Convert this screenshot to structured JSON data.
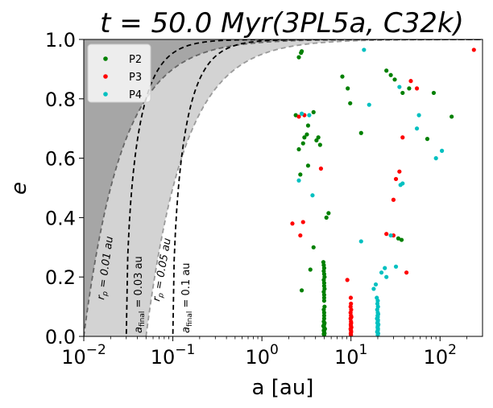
{
  "chart_data": {
    "type": "scatter",
    "title": "t = 50.0 Myr(3PL5a, C32k)",
    "xlabel": "a [au]",
    "ylabel": "e",
    "x_scale": "log",
    "xlim": [
      0.01,
      300
    ],
    "ylim": [
      0.0,
      1.0
    ],
    "x_ticks": [
      {
        "value": 0.01,
        "base": "10",
        "exp": "−2"
      },
      {
        "value": 0.1,
        "base": "10",
        "exp": "−1"
      },
      {
        "value": 1,
        "base": "10",
        "exp": "0"
      },
      {
        "value": 10,
        "base": "10",
        "exp": "1"
      },
      {
        "value": 100,
        "base": "10",
        "exp": "2"
      }
    ],
    "y_ticks": [
      "0.0",
      "0.2",
      "0.4",
      "0.6",
      "0.8",
      "1.0"
    ],
    "legend_position": "top-left",
    "shading": {
      "dark_region_boundary_rp": 0.01,
      "light_region_boundary_rp": 0.05,
      "dark_color": "#a6a6a6",
      "light_color": "#d3d3d3"
    },
    "curves": [
      {
        "kind": "rp",
        "rp": 0.01,
        "label": "r_p = 0.01 au",
        "color": "#666666"
      },
      {
        "kind": "rp",
        "rp": 0.05,
        "label": "r_p = 0.05 au",
        "color": "#9a9a9a"
      },
      {
        "kind": "afinal",
        "af": 0.03,
        "label": "a_final = 0.03 au",
        "color": "#000000"
      },
      {
        "kind": "afinal",
        "af": 0.1,
        "label": "a_final = 0.1 au",
        "color": "#000000"
      }
    ],
    "annotations": {
      "rp1_main": "r",
      "rp1_sub": "p",
      "rp1_rest": " = 0.01 au",
      "rp2_main": "r",
      "rp2_sub": "p",
      "rp2_rest": " = 0.05 au",
      "af1_main": "a",
      "af1_sub": "final",
      "af1_rest": " = 0.03 au",
      "af2_main": "a",
      "af2_sub": "final",
      "af2_rest": " = 0.1 au"
    },
    "series": [
      {
        "name": "P2",
        "color": "#008000",
        "points": [
          [
            2.6,
            0.94
          ],
          [
            2.75,
            0.955
          ],
          [
            2.8,
            0.96
          ],
          [
            2.4,
            0.745
          ],
          [
            3.3,
            0.71
          ],
          [
            3.8,
            0.755
          ],
          [
            2.6,
            0.63
          ],
          [
            2.9,
            0.65
          ],
          [
            3.0,
            0.67
          ],
          [
            3.2,
            0.68
          ],
          [
            4.3,
            0.67
          ],
          [
            4.1,
            0.66
          ],
          [
            4.5,
            0.645
          ],
          [
            2.7,
            0.545
          ],
          [
            3.3,
            0.575
          ],
          [
            5.3,
            0.4
          ],
          [
            5.6,
            0.415
          ],
          [
            3.8,
            0.3
          ],
          [
            3.5,
            0.225
          ],
          [
            2.8,
            0.155
          ],
          [
            4.9,
            0.25
          ],
          [
            4.95,
            0.24
          ],
          [
            5.0,
            0.23
          ],
          [
            4.95,
            0.22
          ],
          [
            5.0,
            0.21
          ],
          [
            5.05,
            0.2
          ],
          [
            4.95,
            0.19
          ],
          [
            5.0,
            0.18
          ],
          [
            5.0,
            0.17
          ],
          [
            5.05,
            0.16
          ],
          [
            4.95,
            0.15
          ],
          [
            5.0,
            0.14
          ],
          [
            5.0,
            0.13
          ],
          [
            5.0,
            0.12
          ],
          [
            5.05,
            0.1
          ],
          [
            4.95,
            0.09
          ],
          [
            5.0,
            0.08
          ],
          [
            5.0,
            0.07
          ],
          [
            5.0,
            0.06
          ],
          [
            4.95,
            0.05
          ],
          [
            5.05,
            0.045
          ],
          [
            5.0,
            0.04
          ],
          [
            4.9,
            0.035
          ],
          [
            5.0,
            0.03
          ],
          [
            5.1,
            0.025
          ],
          [
            4.95,
            0.02
          ],
          [
            5.0,
            0.015
          ],
          [
            5.05,
            0.01
          ],
          [
            4.95,
            0.008
          ],
          [
            5.0,
            0.005
          ],
          [
            8.0,
            0.875
          ],
          [
            9.2,
            0.835
          ],
          [
            9.8,
            0.785
          ],
          [
            13.0,
            0.685
          ],
          [
            25.0,
            0.895
          ],
          [
            28.0,
            0.88
          ],
          [
            31.0,
            0.865
          ],
          [
            38.0,
            0.82
          ],
          [
            45.0,
            0.835
          ],
          [
            34.0,
            0.33
          ],
          [
            37.0,
            0.325
          ],
          [
            85.0,
            0.82
          ],
          [
            72.0,
            0.665
          ],
          [
            135.0,
            0.74
          ]
        ]
      },
      {
        "name": "P3",
        "color": "#ff0000",
        "points": [
          [
            2.6,
            0.74
          ],
          [
            3.0,
            0.745
          ],
          [
            4.6,
            0.565
          ],
          [
            2.2,
            0.38
          ],
          [
            2.9,
            0.385
          ],
          [
            2.7,
            0.34
          ],
          [
            9.1,
            0.19
          ],
          [
            9.95,
            0.13
          ],
          [
            10.0,
            0.11
          ],
          [
            9.9,
            0.1
          ],
          [
            10.05,
            0.09
          ],
          [
            9.9,
            0.08
          ],
          [
            10.0,
            0.07
          ],
          [
            10.1,
            0.065
          ],
          [
            9.9,
            0.06
          ],
          [
            10.0,
            0.05
          ],
          [
            10.05,
            0.045
          ],
          [
            9.95,
            0.04
          ],
          [
            10.0,
            0.035
          ],
          [
            10.1,
            0.03
          ],
          [
            9.9,
            0.025
          ],
          [
            10.0,
            0.02
          ],
          [
            10.05,
            0.015
          ],
          [
            9.95,
            0.01
          ],
          [
            10.0,
            0.005
          ],
          [
            30.0,
            0.46
          ],
          [
            32.0,
            0.53
          ],
          [
            35.0,
            0.555
          ],
          [
            38.0,
            0.67
          ],
          [
            25.0,
            0.345
          ],
          [
            30.0,
            0.34
          ],
          [
            42.0,
            0.215
          ],
          [
            47.0,
            0.86
          ],
          [
            55.0,
            0.835
          ],
          [
            240.0,
            0.965
          ]
        ]
      },
      {
        "name": "P4",
        "color": "#00c0c0",
        "points": [
          [
            2.8,
            0.75
          ],
          [
            2.6,
            0.525
          ],
          [
            3.4,
            0.745
          ],
          [
            3.7,
            0.475
          ],
          [
            14.0,
            0.965
          ],
          [
            16.0,
            0.78
          ],
          [
            13.0,
            0.32
          ],
          [
            18.0,
            0.16
          ],
          [
            19.0,
            0.175
          ],
          [
            19.5,
            0.13
          ],
          [
            20.0,
            0.12
          ],
          [
            19.8,
            0.11
          ],
          [
            20.1,
            0.1
          ],
          [
            19.7,
            0.09
          ],
          [
            20.0,
            0.08
          ],
          [
            20.2,
            0.075
          ],
          [
            19.9,
            0.07
          ],
          [
            20.0,
            0.065
          ],
          [
            19.6,
            0.06
          ],
          [
            20.1,
            0.055
          ],
          [
            20.0,
            0.05
          ],
          [
            19.8,
            0.045
          ],
          [
            20.3,
            0.04
          ],
          [
            20.0,
            0.035
          ],
          [
            19.9,
            0.03
          ],
          [
            20.1,
            0.025
          ],
          [
            20.0,
            0.02
          ],
          [
            19.7,
            0.015
          ],
          [
            20.2,
            0.01
          ],
          [
            20.0,
            0.005
          ],
          [
            22.0,
            0.215
          ],
          [
            24.0,
            0.23
          ],
          [
            25.0,
            0.2
          ],
          [
            28.0,
            0.34
          ],
          [
            32.0,
            0.235
          ],
          [
            36.0,
            0.51
          ],
          [
            38.0,
            0.515
          ],
          [
            35.0,
            0.84
          ],
          [
            55.0,
            0.7
          ],
          [
            58.0,
            0.745
          ],
          [
            90.0,
            0.6
          ],
          [
            105.0,
            0.625
          ]
        ]
      }
    ]
  }
}
